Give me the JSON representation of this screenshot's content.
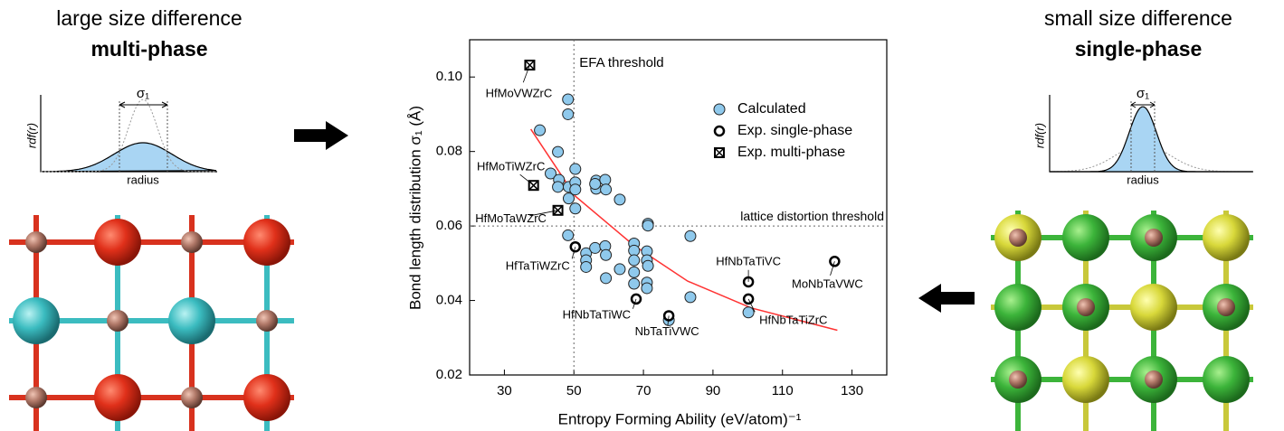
{
  "left_panel": {
    "title": "large size difference",
    "subtitle": "multi-phase",
    "ylabel": "rdf(r)",
    "xlabel": "radius",
    "sigma": "σ₁"
  },
  "right_panel": {
    "title": "small size difference",
    "subtitle": "single-phase",
    "ylabel": "rdf(r)",
    "xlabel": "radius",
    "sigma": "σ₁"
  },
  "chart_data": {
    "type": "scatter",
    "xlabel": "Entropy Forming Ability (eV/atom)⁻¹",
    "ylabel": "Bond length distribution σ₁ (Å)",
    "xlim": [
      20,
      140
    ],
    "xticks": [
      30,
      50,
      70,
      90,
      110,
      130
    ],
    "ylim": [
      0.02,
      0.11
    ],
    "yticks": [
      0.02,
      0.04,
      0.06,
      0.08,
      {
        "value": 0.1,
        "label": "0.10"
      }
    ],
    "legend": "upper right",
    "thresholds": [
      {
        "label": "EFA threshold",
        "axis": "x",
        "value": 50
      },
      {
        "label": "lattice distortion threshold",
        "axis": "y",
        "value": 0.06
      }
    ],
    "fit": {
      "color": "#ff3333",
      "x": [
        37.6,
        50.4,
        67.1,
        82.7,
        101,
        125.8
      ],
      "y": [
        0.086,
        0.068,
        0.0549,
        0.0452,
        0.038,
        0.032
      ]
    },
    "series": [
      {
        "name": "Calculated",
        "marker": "circle",
        "color": "#8fc9ec",
        "x": [
          48.3,
          48.3,
          40.2,
          45.4,
          50.4,
          43.3,
          45.7,
          45.4,
          48.5,
          50.4,
          50.4,
          48.5,
          50.4,
          56.4,
          56.4,
          59.0,
          59.2,
          56.1,
          63.2,
          71.3,
          71.3,
          48.3,
          83.5,
          53.5,
          53.5,
          53.5,
          56.1,
          59.0,
          59.2,
          59.2,
          63.2,
          67.3,
          67.3,
          67.3,
          67.3,
          67.3,
          71.0,
          71.0,
          71.3,
          71.0,
          71.0,
          83.5,
          77.3,
          100.2
        ],
        "y": [
          0.094,
          0.09,
          0.0857,
          0.0799,
          0.0753,
          0.0741,
          0.0724,
          0.0705,
          0.0705,
          0.0717,
          0.0698,
          0.0674,
          0.0647,
          0.0722,
          0.07,
          0.0724,
          0.0698,
          0.0713,
          0.0671,
          0.0606,
          0.0601,
          0.0575,
          0.0573,
          0.0527,
          0.0508,
          0.049,
          0.0541,
          0.0546,
          0.0522,
          0.046,
          0.0484,
          0.0553,
          0.0534,
          0.0508,
          0.0476,
          0.0445,
          0.0532,
          0.0508,
          0.0493,
          0.0448,
          0.0433,
          0.0409,
          0.0347,
          0.0368
        ]
      },
      {
        "name": "Exp. single-phase",
        "marker": "open-circle",
        "color": "#000000",
        "x": [
          50.4,
          67.9,
          77.3,
          100.2,
          100.2,
          125
        ],
        "y": [
          0.0544,
          0.0404,
          0.0359,
          0.045,
          0.0404,
          0.0505
        ],
        "labels": [
          "HfTaTiWZrC",
          "HfNbTaTiWC",
          "NbTaTiVWC",
          "HfNbTaTiVC",
          "HfNbTaTiZrC",
          "MoNbTaVWC"
        ]
      },
      {
        "name": "Exp. multi-phase",
        "marker": "crossed-square",
        "color": "#000000",
        "x": [
          37.3,
          38.4,
          45.4
        ],
        "y": [
          0.1032,
          0.0709,
          0.0642
        ],
        "labels": [
          "HfMoVWZrC",
          "HfMoTiWZrC",
          "HfMoTaWZrC"
        ]
      }
    ]
  }
}
